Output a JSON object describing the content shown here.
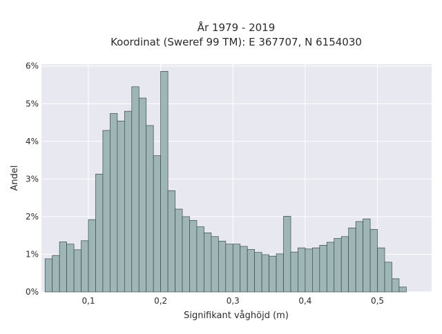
{
  "chart_data": {
    "type": "bar",
    "title": "År 1979 - 2019",
    "subtitle": "Koordinat (Sweref 99 TM): E 367707, N 6154030",
    "xlabel": "Signifikant våghöjd (m)",
    "ylabel": "Andel",
    "xlim": [
      0.035,
      0.575
    ],
    "ylim": [
      0,
      0.0605
    ],
    "x_ticks": [
      {
        "value": 0.1,
        "label": "0,1"
      },
      {
        "value": 0.2,
        "label": "0,2"
      },
      {
        "value": 0.3,
        "label": "0,3"
      },
      {
        "value": 0.4,
        "label": "0,4"
      },
      {
        "value": 0.5,
        "label": "0,5"
      }
    ],
    "y_ticks": [
      {
        "value": 0.0,
        "label": "0%"
      },
      {
        "value": 0.01,
        "label": "1%"
      },
      {
        "value": 0.02,
        "label": "2%"
      },
      {
        "value": 0.03,
        "label": "3%"
      },
      {
        "value": 0.04,
        "label": "4%"
      },
      {
        "value": 0.05,
        "label": "5%"
      },
      {
        "value": 0.06,
        "label": "6%"
      }
    ],
    "bin_start": 0.04,
    "bin_width": 0.01,
    "values": [
      0.0088,
      0.0097,
      0.0133,
      0.0127,
      0.0112,
      0.0136,
      0.0192,
      0.0313,
      0.0429,
      0.0474,
      0.0454,
      0.048,
      0.0545,
      0.0515,
      0.0442,
      0.0362,
      0.0586,
      0.0269,
      0.022,
      0.02,
      0.019,
      0.0173,
      0.0157,
      0.0147,
      0.0135,
      0.0127,
      0.0127,
      0.0121,
      0.0113,
      0.0105,
      0.0099,
      0.0095,
      0.0101,
      0.0201,
      0.0106,
      0.0117,
      0.0114,
      0.0117,
      0.0124,
      0.0132,
      0.0142,
      0.0147,
      0.017,
      0.0187,
      0.0194,
      0.0166,
      0.0117,
      0.0079,
      0.0035,
      0.0013
    ],
    "grid": true,
    "colors": {
      "plot_background": "#e8e8f0",
      "grid": "#ffffff",
      "bar_fill": "#9fb6b6",
      "bar_edge": "#3b4a4a"
    }
  }
}
